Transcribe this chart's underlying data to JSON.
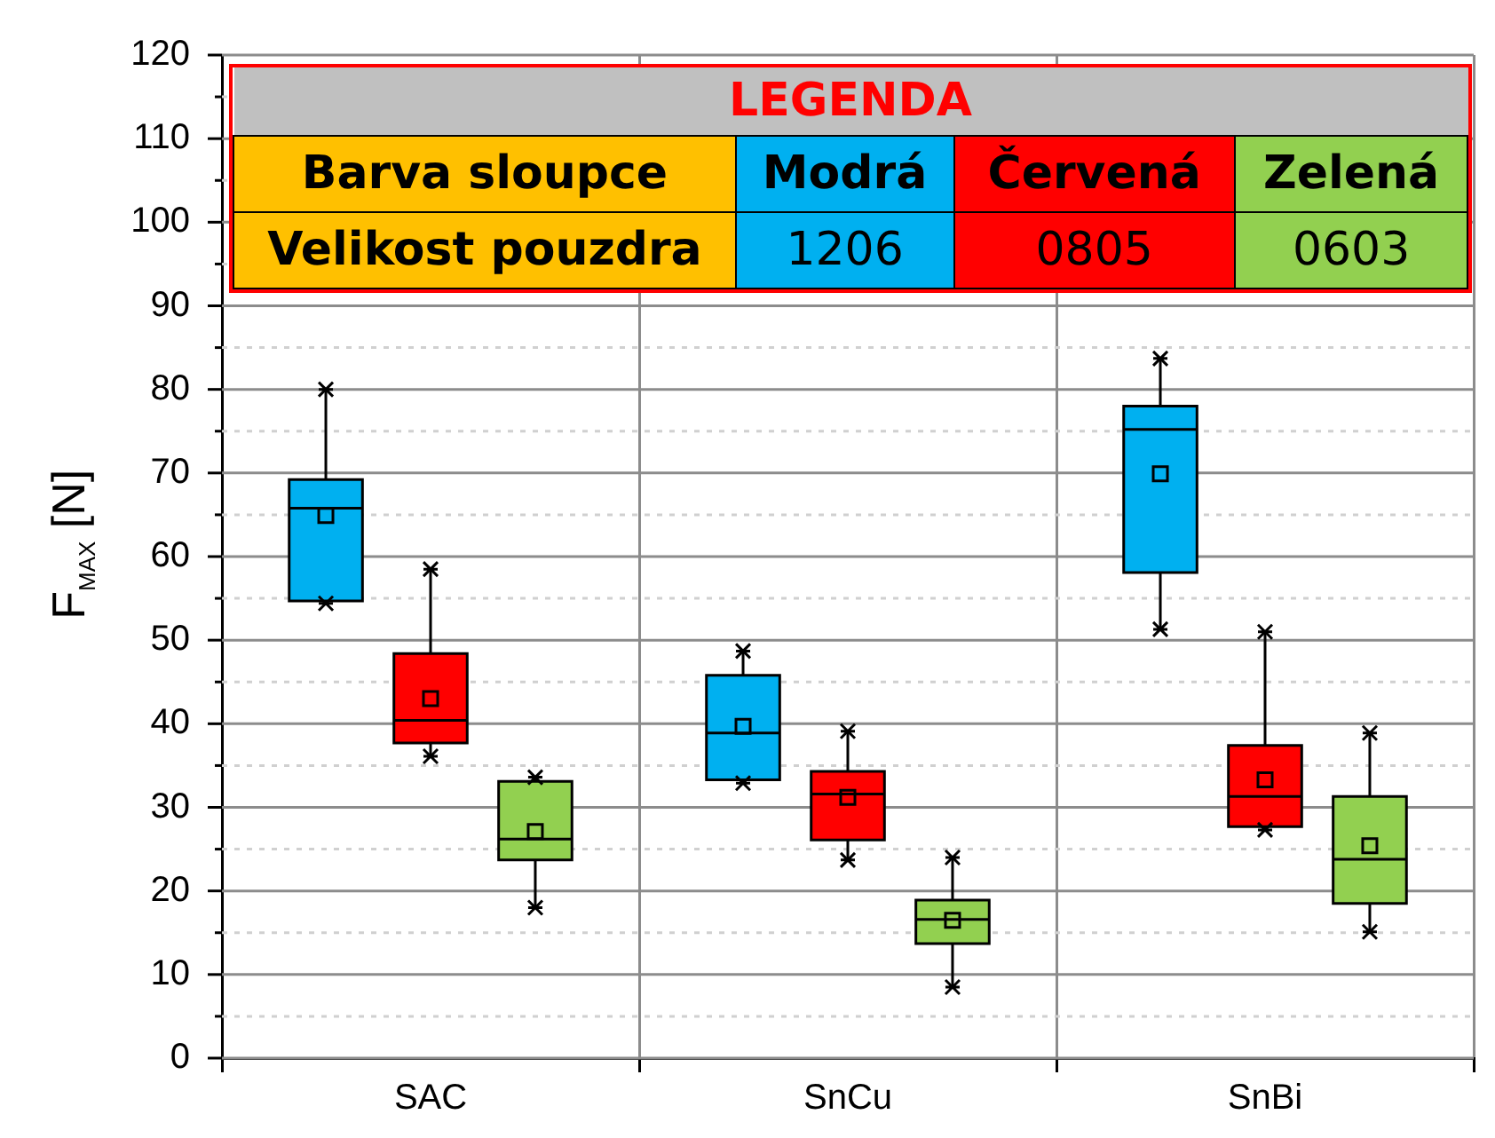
{
  "chart_data": {
    "type": "box",
    "ylabel": "F$_{MAX}$ [N]",
    "legend_title": "LEGENDA",
    "categories": [
      "SAC",
      "SnCu",
      "SnBi"
    ],
    "annotations": [
      "Barva sloupce",
      "Velikost pouzdra",
      "Modrá",
      "Červená",
      "Zelená"
    ],
    "ylim": [
      0,
      120
    ],
    "yticks": [
      0,
      {
        "value": 5,
        "label": null
      },
      10,
      {
        "value": 15,
        "label": null
      },
      20,
      {
        "value": 25,
        "label": null
      },
      30,
      {
        "value": 35,
        "label": null
      },
      40,
      {
        "value": 45,
        "label": null
      },
      50,
      {
        "value": 55,
        "label": null
      },
      60,
      {
        "value": 65,
        "label": null
      },
      70,
      {
        "value": 75,
        "label": null
      },
      80,
      {
        "value": 85,
        "label": null
      },
      90,
      {
        "value": 95,
        "label": null
      },
      100,
      {
        "value": 105,
        "label": null
      },
      110,
      {
        "value": 115,
        "label": null
      },
      120
    ],
    "grid": true,
    "legend": "top",
    "series": [
      {
        "name": "1206",
        "color": "#00b0f0",
        "boxes": [
          {
            "low": 54.4,
            "q1": 54.7,
            "median": 65.8,
            "q3": 69.2,
            "high": 80,
            "mean": 64.9
          },
          {
            "low": 32.9,
            "q1": 33.3,
            "median": 38.9,
            "q3": 45.8,
            "high": 48.7,
            "mean": 39.7
          },
          {
            "low": 51.3,
            "q1": 58.1,
            "median": 75.2,
            "q3": 78,
            "high": 83.7,
            "mean": 69.9
          }
        ]
      },
      {
        "name": "0805",
        "color": "#ff0000",
        "boxes": [
          {
            "low": 36.1,
            "q1": 37.7,
            "median": 40.4,
            "q3": 48.4,
            "high": 58.5,
            "mean": 43
          },
          {
            "low": 23.7,
            "q1": 26.1,
            "median": 31.6,
            "q3": 34.3,
            "high": 39.1,
            "mean": 31.2
          },
          {
            "low": 27.3,
            "q1": 27.7,
            "median": 31.3,
            "q3": 37.4,
            "high": 51,
            "mean": 33.3
          }
        ]
      },
      {
        "name": "0603",
        "color": "#92d050",
        "boxes": [
          {
            "low": 18,
            "q1": 23.7,
            "median": 26.2,
            "q3": 33.1,
            "high": 33.6,
            "mean": 27.1
          },
          {
            "low": 8.5,
            "q1": 13.7,
            "median": 16.6,
            "q3": 18.9,
            "high": 24,
            "mean": 16.5
          },
          {
            "low": 15.1,
            "q1": 18.5,
            "median": 23.8,
            "q3": 31.3,
            "high": 38.9,
            "mean": 25.4
          }
        ]
      }
    ]
  }
}
